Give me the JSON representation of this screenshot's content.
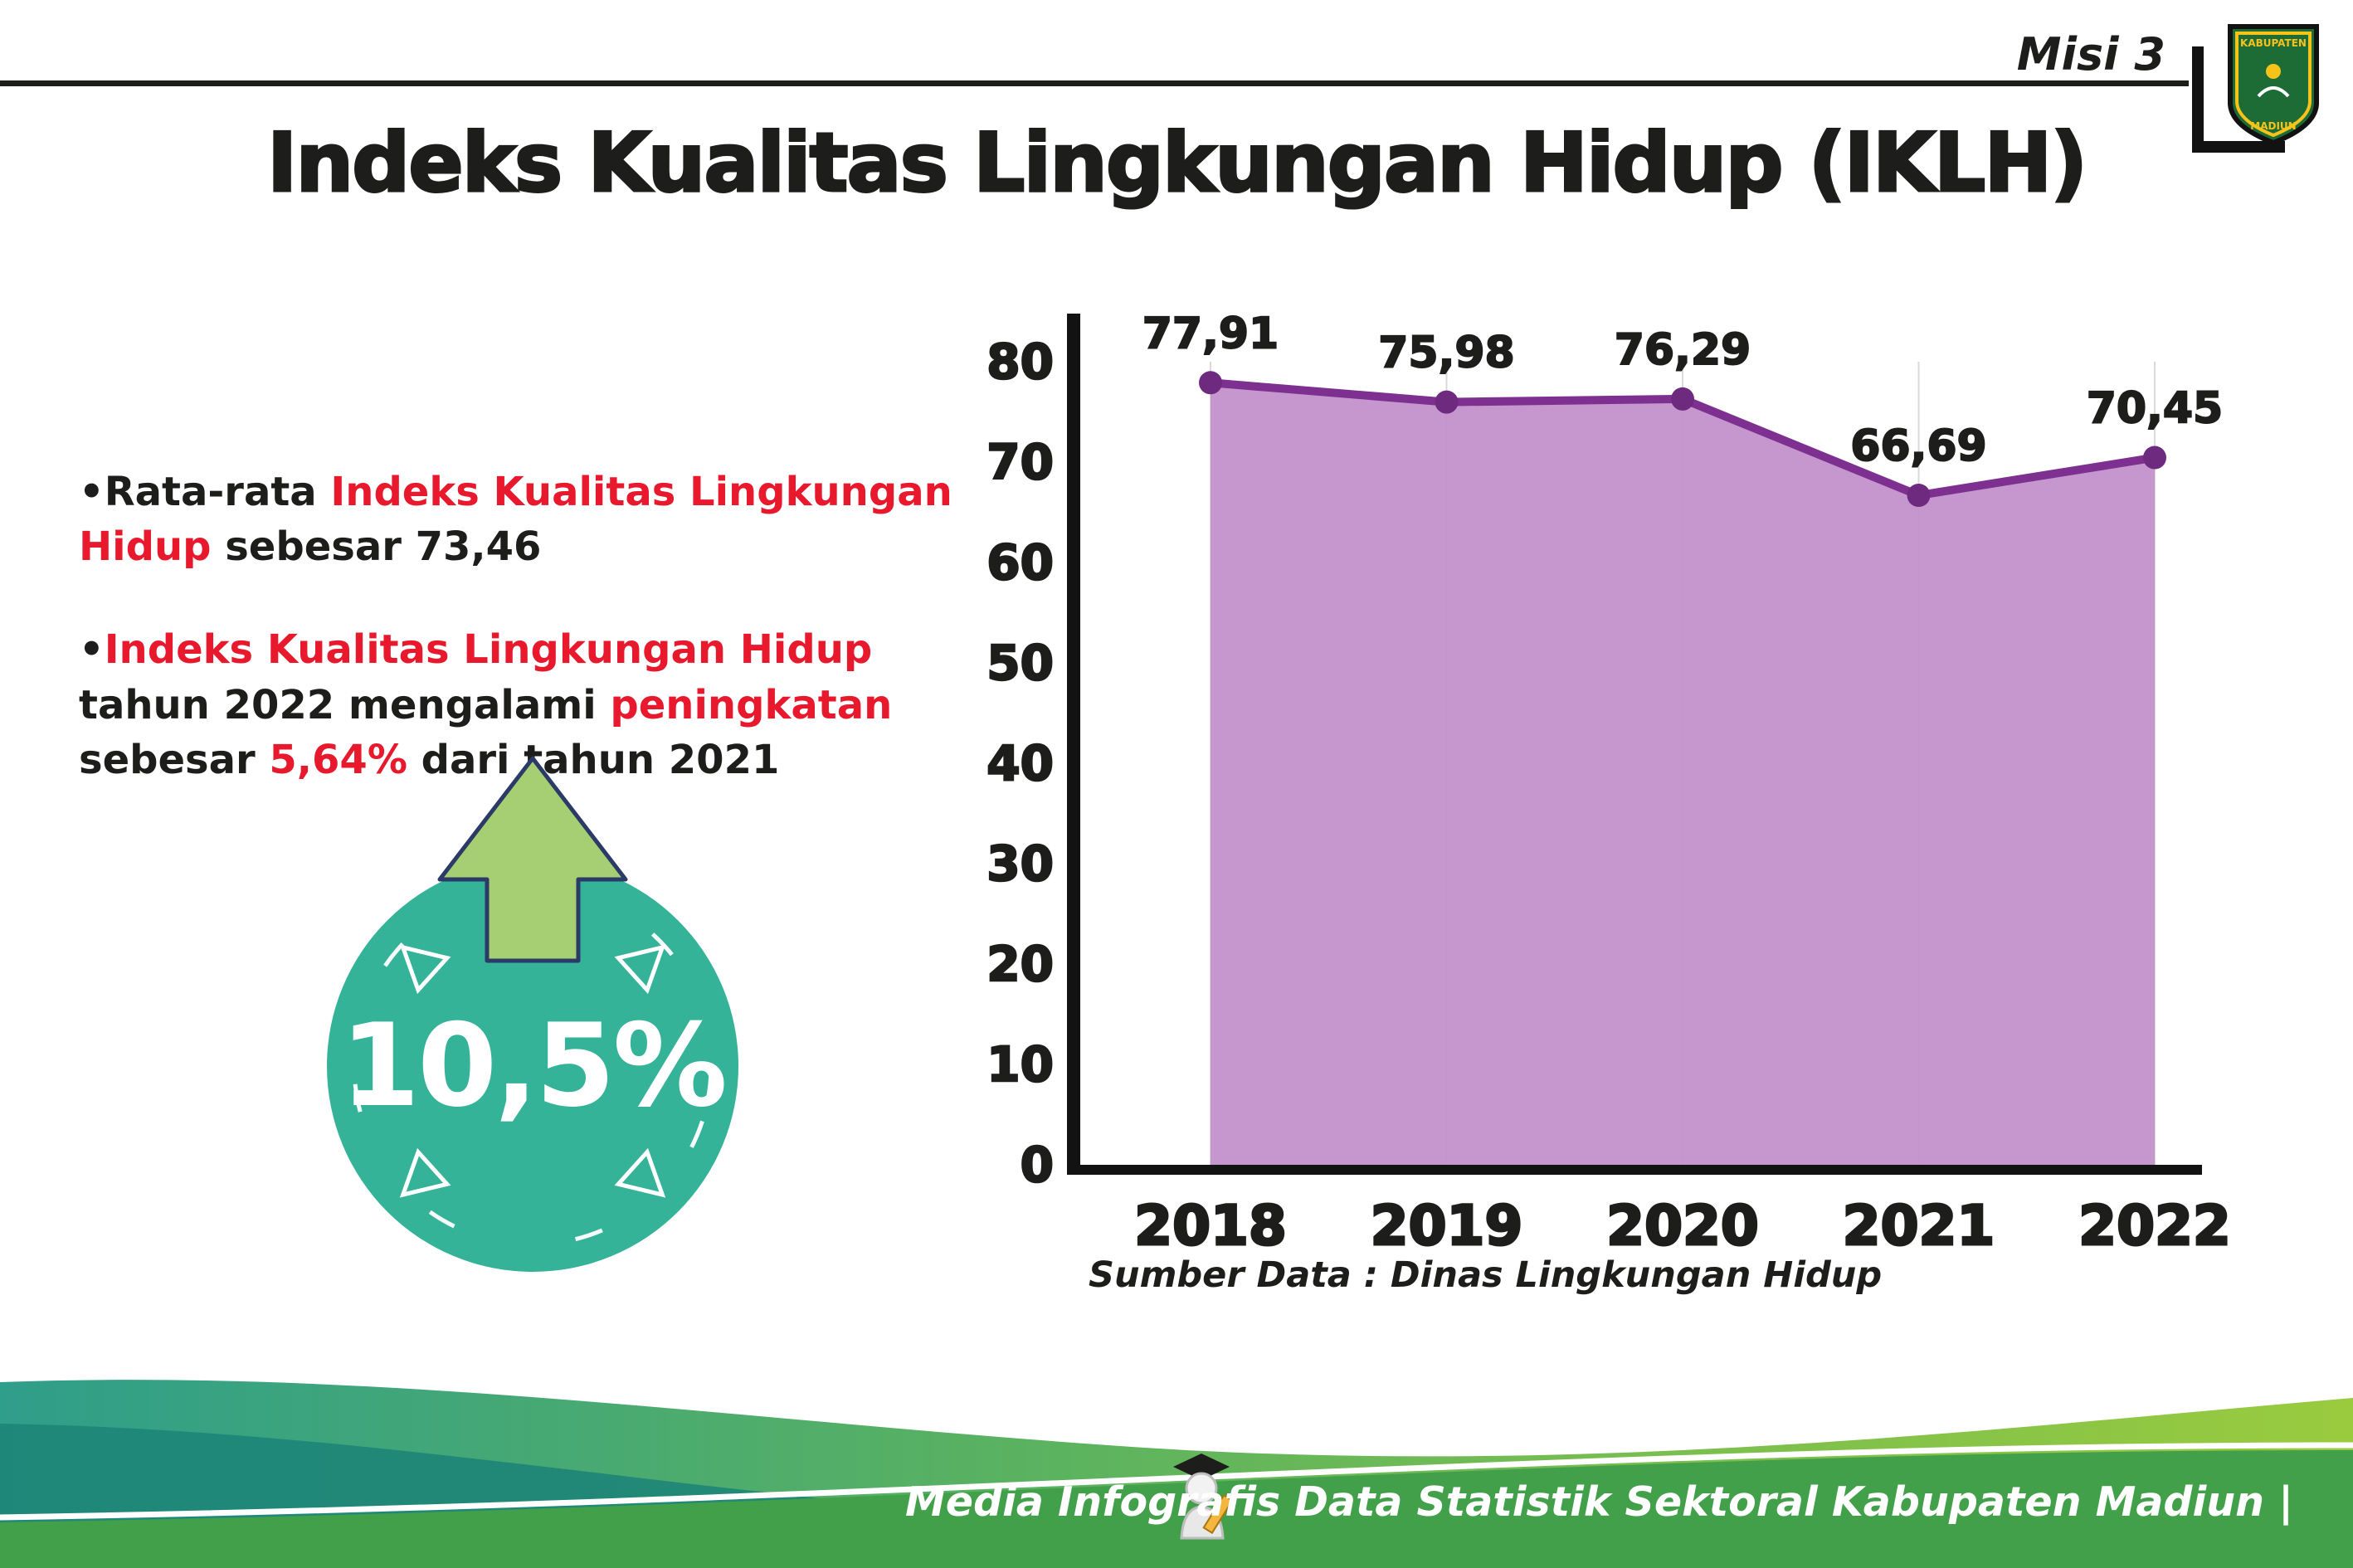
{
  "header": {
    "misi": "Misi 3",
    "title": "Indeks Kualitas Lingkungan Hidup (IKLH)",
    "logo_top": "KABUPATEN",
    "logo_bottom": "MADIUN"
  },
  "bullets": {
    "marker": "•",
    "b1_seg1": "Rata-rata ",
    "b1_seg2": "Indeks Kualitas Lingkungan Hidup",
    "b1_seg3": " sebesar 73,46",
    "b2_seg1": "Indeks Kualitas Lingkungan Hidup",
    "b2_seg2": " tahun 2022 mengalami ",
    "b2_seg3": "peningkatan",
    "b2_seg4": " sebesar ",
    "b2_seg5": "5,64%",
    "b2_seg6": " dari tahun 2021"
  },
  "badge": {
    "value": "10,5%"
  },
  "chart_data": {
    "type": "area",
    "categories": [
      "2018",
      "2019",
      "2020",
      "2021",
      "2022"
    ],
    "values": [
      77.91,
      75.98,
      76.29,
      66.69,
      70.45
    ],
    "value_labels": [
      "77,91",
      "75,98",
      "76,29",
      "66,69",
      "70,45"
    ],
    "ylim": [
      0,
      80
    ],
    "yticks": [
      0,
      10,
      20,
      30,
      40,
      50,
      60,
      70,
      80
    ],
    "grid": "vertical",
    "legend": "none",
    "xlabel": "",
    "ylabel": "",
    "source": "Sumber Data : Dinas Lingkungan Hidup",
    "fill_color": "#c291cb",
    "line_color": "#7e3090",
    "point_color": "#6e2a7e"
  },
  "footer": {
    "credit": "Media Infografis Data Statistik Sektoral Kabupaten Madiun |"
  },
  "colors": {
    "accent_red": "#e8192c",
    "badge_teal": "#35b399",
    "arrow_green": "#a5cf72",
    "footer_green": "#43a04a",
    "footer_teal": "#1e8577",
    "ink": "#1d1d1b"
  }
}
